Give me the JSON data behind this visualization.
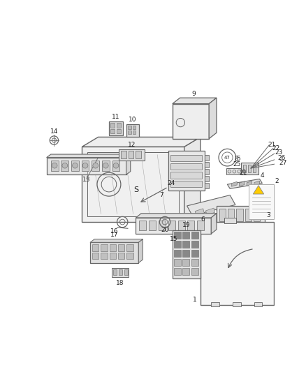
{
  "bg_color": "#ffffff",
  "line_color": "#666666",
  "label_color": "#222222",
  "figsize": [
    4.38,
    5.33
  ],
  "dpi": 100
}
